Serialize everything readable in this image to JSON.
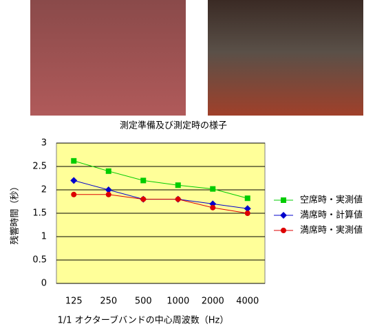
{
  "caption": "測定準備及び測定時の様子",
  "chart_data": {
    "type": "line",
    "x_label": "1/1 オクターブバンドの中心周波数（Hz）",
    "y_label": "残響時間（秒）",
    "categories": [
      "125",
      "250",
      "500",
      "1000",
      "2000",
      "4000"
    ],
    "series": [
      {
        "name": "空席時・実測値",
        "color": "#00cc00",
        "marker": "square",
        "values": [
          2.62,
          2.4,
          2.2,
          2.1,
          2.02,
          1.82
        ]
      },
      {
        "name": "満席時・計算値",
        "color": "#0000cc",
        "marker": "diamond",
        "values": [
          2.2,
          2.0,
          1.8,
          1.8,
          1.7,
          1.6
        ]
      },
      {
        "name": "満席時・実測値",
        "color": "#dd0000",
        "marker": "circle",
        "values": [
          1.9,
          1.9,
          1.8,
          1.8,
          1.62,
          1.5
        ]
      }
    ],
    "ylim": [
      0,
      3
    ],
    "yticks": [
      0,
      0.5,
      1,
      1.5,
      2,
      2.5,
      3
    ],
    "grid": true,
    "legend": "right"
  }
}
